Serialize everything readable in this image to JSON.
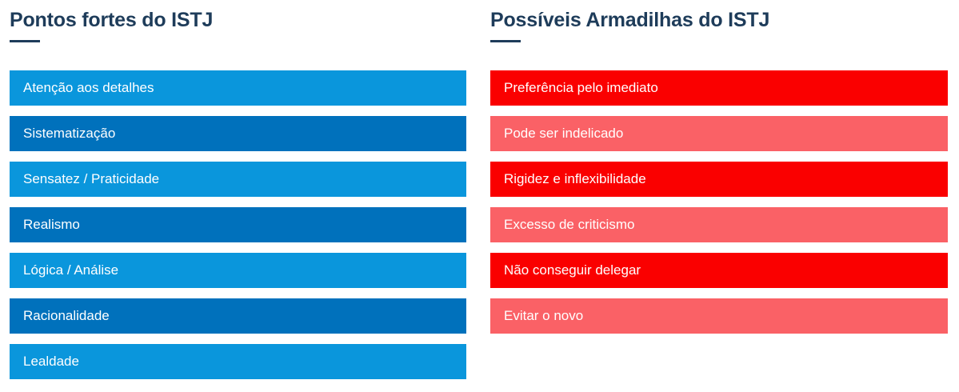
{
  "page": {
    "background": "#ffffff",
    "bar_text_color": "#ffffff"
  },
  "columns": [
    {
      "title": "Pontos fortes do ISTJ",
      "accent_color": "#1e3c5a",
      "bar_colors": {
        "primary": "#0a96dc",
        "secondary": "#0071bc"
      },
      "items": [
        {
          "label": "Atenção aos detalhes",
          "tone": "primary"
        },
        {
          "label": "Sistematização",
          "tone": "secondary"
        },
        {
          "label": "Sensatez / Praticidade",
          "tone": "primary"
        },
        {
          "label": "Realismo",
          "tone": "secondary"
        },
        {
          "label": "Lógica / Análise",
          "tone": "primary"
        },
        {
          "label": "Racionalidade",
          "tone": "secondary"
        },
        {
          "label": "Lealdade",
          "tone": "primary"
        }
      ]
    },
    {
      "title": "Possíveis Armadilhas do ISTJ",
      "accent_color": "#1e3c5a",
      "bar_colors": {
        "primary": "#fa0000",
        "secondary": "#fa6166"
      },
      "items": [
        {
          "label": "Preferência pelo imediato",
          "tone": "primary"
        },
        {
          "label": "Pode ser indelicado",
          "tone": "secondary"
        },
        {
          "label": "Rigidez e inflexibilidade",
          "tone": "primary"
        },
        {
          "label": "Excesso de criticismo",
          "tone": "secondary"
        },
        {
          "label": "Não conseguir delegar",
          "tone": "primary"
        },
        {
          "label": "Evitar o novo",
          "tone": "secondary"
        }
      ]
    }
  ]
}
